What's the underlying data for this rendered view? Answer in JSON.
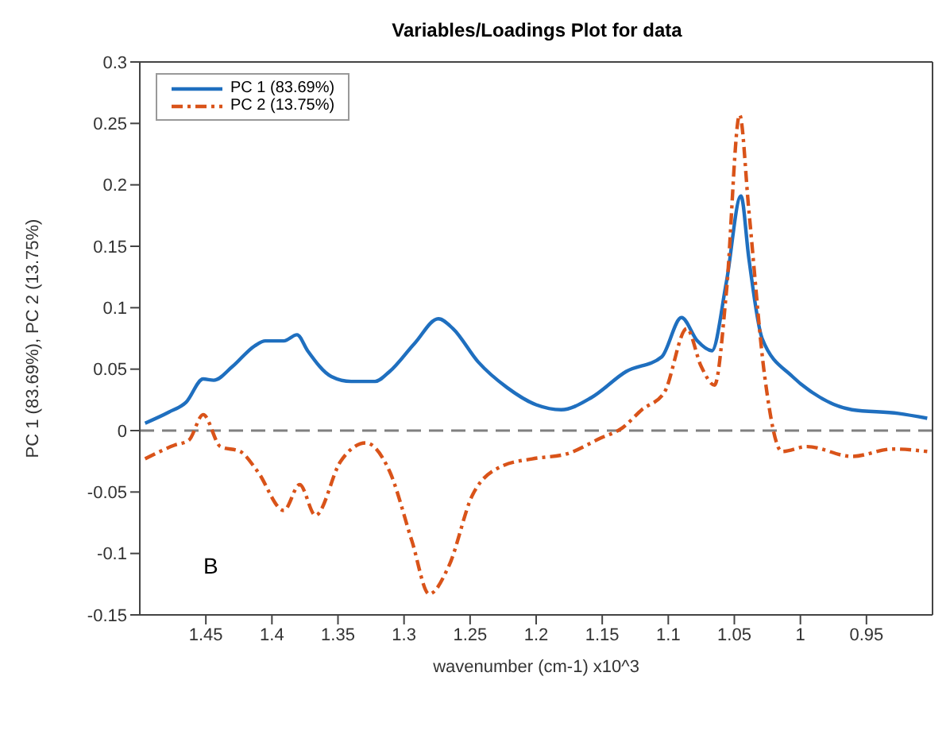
{
  "chart_data": {
    "type": "line",
    "title": "Variables/Loadings Plot for data",
    "xlabel": "wavenumber (cm-1) x10^3",
    "ylabel": "PC 1 (83.69%), PC 2 (13.75%)",
    "annotations": [
      "B"
    ],
    "xlim": [
      1.5,
      0.9
    ],
    "xticks": [
      1.45,
      1.4,
      1.35,
      1.3,
      1.25,
      1.2,
      1.15,
      1.1,
      1.05,
      1,
      0.95
    ],
    "ylim": [
      -0.15,
      0.3
    ],
    "yticks": [
      -0.15,
      -0.1,
      -0.05,
      0,
      0.05,
      0.1,
      0.15,
      0.2,
      0.25,
      0.3
    ],
    "legend": "top left",
    "marker": "none",
    "ref_lines": [
      {
        "axis": "y",
        "value": 0,
        "color": "#808080",
        "line_style": "dashed"
      }
    ],
    "series": [
      {
        "name": "PC 1 (83.69%)",
        "color": "#1f6fbf",
        "line_style": "solid",
        "x": [
          1.496,
          1.478,
          1.465,
          1.452,
          1.444,
          1.43,
          1.413,
          1.405,
          1.391,
          1.381,
          1.373,
          1.355,
          1.34,
          1.322,
          1.311,
          1.292,
          1.274,
          1.263,
          1.244,
          1.222,
          1.2,
          1.181,
          1.158,
          1.132,
          1.105,
          1.09,
          1.078,
          1.067,
          1.056,
          1.045,
          1.039,
          1.029,
          1.006,
          0.991,
          0.961,
          0.926,
          0.904
        ],
        "values": [
          0.006,
          0.015,
          0.023,
          0.042,
          0.041,
          0.052,
          0.069,
          0.073,
          0.073,
          0.078,
          0.065,
          0.044,
          0.04,
          0.04,
          0.048,
          0.071,
          0.091,
          0.083,
          0.056,
          0.035,
          0.021,
          0.017,
          0.027,
          0.048,
          0.06,
          0.092,
          0.073,
          0.065,
          0.121,
          0.191,
          0.14,
          0.075,
          0.044,
          0.031,
          0.017,
          0.014,
          0.01
        ]
      },
      {
        "name": "PC 2 (13.75%)",
        "color": "#d95319",
        "line_style": "dashed",
        "x": [
          1.496,
          1.474,
          1.463,
          1.452,
          1.439,
          1.424,
          1.411,
          1.391,
          1.379,
          1.367,
          1.348,
          1.329,
          1.311,
          1.294,
          1.281,
          1.266,
          1.248,
          1.226,
          1.203,
          1.177,
          1.151,
          1.135,
          1.12,
          1.103,
          1.086,
          1.075,
          1.065,
          1.056,
          1.046,
          1.039,
          1.027,
          1.014,
          0.995,
          0.961,
          0.93,
          0.904
        ],
        "values": [
          -0.023,
          -0.012,
          -0.008,
          0.013,
          -0.013,
          -0.017,
          -0.033,
          -0.065,
          -0.044,
          -0.069,
          -0.025,
          -0.01,
          -0.033,
          -0.09,
          -0.133,
          -0.11,
          -0.052,
          -0.029,
          -0.023,
          -0.019,
          -0.006,
          0.002,
          0.017,
          0.031,
          0.083,
          0.052,
          0.037,
          0.113,
          0.257,
          0.179,
          0.044,
          -0.017,
          -0.013,
          -0.021,
          -0.015,
          -0.017
        ]
      }
    ]
  }
}
